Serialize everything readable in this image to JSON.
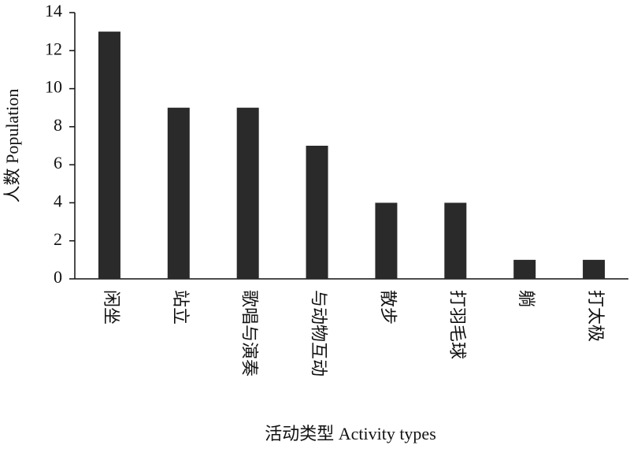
{
  "chart_data": {
    "type": "bar",
    "x_label": "活动类型 Activity types",
    "y_label": "人数 Population",
    "categories": [
      "闲坐",
      "站立",
      "歌唱与演奏",
      "与动物互动",
      "散步",
      "打羽毛球",
      "躺",
      "打太极"
    ],
    "values": [
      13,
      9,
      9,
      7,
      4,
      4,
      1,
      1
    ],
    "color": "#2a2a2a",
    "ylim": [
      0,
      14
    ],
    "yticks": [
      0,
      2,
      4,
      6,
      8,
      10,
      12,
      14
    ],
    "grid": false
  }
}
